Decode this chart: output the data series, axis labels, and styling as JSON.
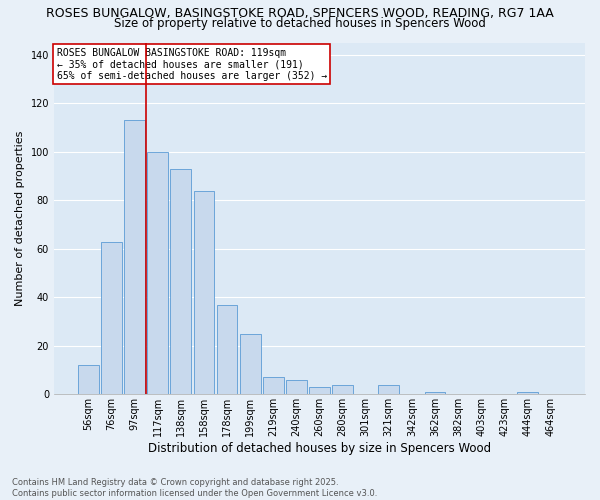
{
  "title": "ROSES BUNGALOW, BASINGSTOKE ROAD, SPENCERS WOOD, READING, RG7 1AA",
  "subtitle": "Size of property relative to detached houses in Spencers Wood",
  "xlabel": "Distribution of detached houses by size in Spencers Wood",
  "ylabel": "Number of detached properties",
  "footnote1": "Contains HM Land Registry data © Crown copyright and database right 2025.",
  "footnote2": "Contains public sector information licensed under the Open Government Licence v3.0.",
  "bar_labels": [
    "56sqm",
    "76sqm",
    "97sqm",
    "117sqm",
    "138sqm",
    "158sqm",
    "178sqm",
    "199sqm",
    "219sqm",
    "240sqm",
    "260sqm",
    "280sqm",
    "301sqm",
    "321sqm",
    "342sqm",
    "362sqm",
    "382sqm",
    "403sqm",
    "423sqm",
    "444sqm",
    "464sqm"
  ],
  "bar_values": [
    12,
    63,
    113,
    100,
    93,
    84,
    37,
    25,
    7,
    6,
    3,
    4,
    0,
    4,
    0,
    1,
    0,
    0,
    0,
    1,
    0
  ],
  "bar_color": "#c8d9ed",
  "bar_edge_color": "#5b9bd5",
  "vline_x": 2.5,
  "vline_color": "#cc0000",
  "annotation_box_text": "ROSES BUNGALOW BASINGSTOKE ROAD: 119sqm\n← 35% of detached houses are smaller (191)\n65% of semi-detached houses are larger (352) →",
  "annotation_box_color": "#cc0000",
  "annotation_box_fill": "#ffffff",
  "ylim": [
    0,
    145
  ],
  "yticks": [
    0,
    20,
    40,
    60,
    80,
    100,
    120,
    140
  ],
  "background_color": "#dce9f5",
  "grid_color": "#ffffff",
  "fig_background": "#e8f0f8",
  "title_fontsize": 9,
  "subtitle_fontsize": 8.5,
  "xlabel_fontsize": 8.5,
  "ylabel_fontsize": 8,
  "tick_fontsize": 7,
  "annotation_fontsize": 7,
  "footnote_fontsize": 6
}
